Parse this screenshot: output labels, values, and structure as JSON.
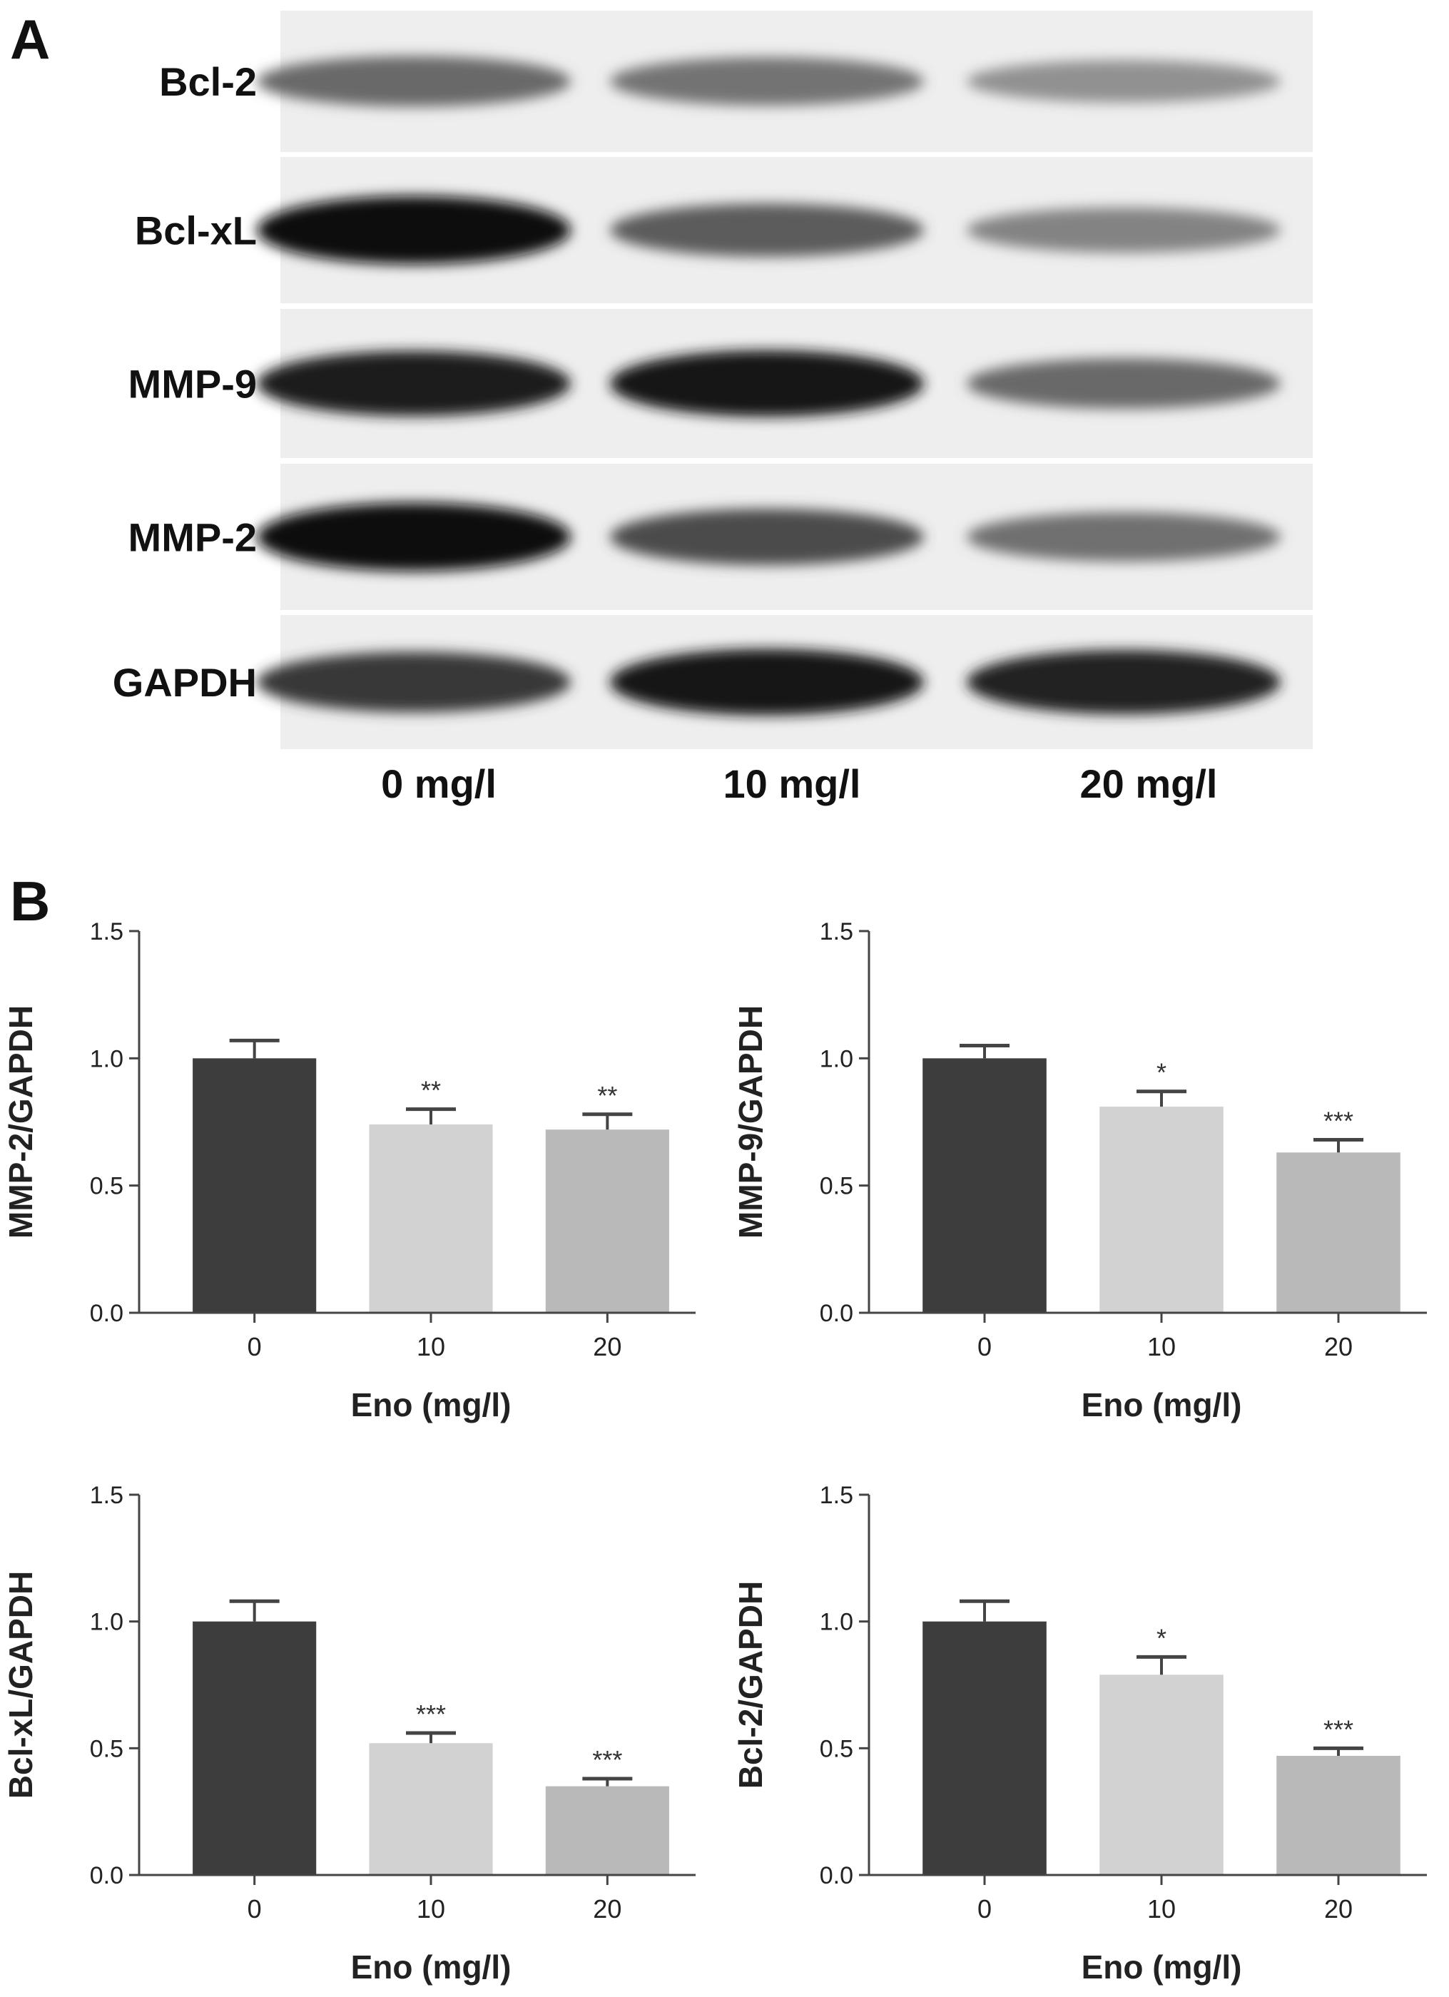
{
  "panel_a": {
    "label": "A",
    "proteins": [
      "Bcl-2",
      "Bcl-xL",
      "MMP-9",
      "MMP-2",
      "GAPDH"
    ],
    "lanes": [
      "0 mg/l",
      "10 mg/l",
      "20 mg/l"
    ],
    "relative_band_intensity": [
      [
        0.55,
        0.5,
        0.35
      ],
      [
        1.0,
        0.62,
        0.42
      ],
      [
        0.92,
        0.95,
        0.55
      ],
      [
        1.0,
        0.7,
        0.52
      ],
      [
        0.8,
        0.95,
        0.9
      ]
    ]
  },
  "panel_b": {
    "label": "B"
  },
  "colors": {
    "bar_0": "#3d3d3d",
    "bar_10": "#d2d2d2",
    "bar_20": "#b9b9b9",
    "axis": "#444444"
  },
  "chart_data": [
    {
      "type": "bar",
      "categories": [
        "0",
        "10",
        "20"
      ],
      "values": [
        1.0,
        0.74,
        0.72
      ],
      "errors": [
        0.07,
        0.06,
        0.06
      ],
      "significance": [
        "",
        "**",
        "**"
      ],
      "xlabel": "Eno (mg/l)",
      "ylabel": "MMP-2/GAPDH",
      "ylim": [
        0,
        1.5
      ],
      "yticks": [
        "0.0",
        "0.5",
        "1.0",
        "1.5"
      ]
    },
    {
      "type": "bar",
      "categories": [
        "0",
        "10",
        "20"
      ],
      "values": [
        1.0,
        0.81,
        0.63
      ],
      "errors": [
        0.05,
        0.06,
        0.05
      ],
      "significance": [
        "",
        "*",
        "***"
      ],
      "xlabel": "Eno (mg/l)",
      "ylabel": "MMP-9/GAPDH",
      "ylim": [
        0,
        1.5
      ],
      "yticks": [
        "0.0",
        "0.5",
        "1.0",
        "1.5"
      ]
    },
    {
      "type": "bar",
      "categories": [
        "0",
        "10",
        "20"
      ],
      "values": [
        1.0,
        0.52,
        0.35
      ],
      "errors": [
        0.08,
        0.04,
        0.03
      ],
      "significance": [
        "",
        "***",
        "***"
      ],
      "xlabel": "Eno (mg/l)",
      "ylabel": "Bcl-xL/GAPDH",
      "ylim": [
        0,
        1.5
      ],
      "yticks": [
        "0.0",
        "0.5",
        "1.0",
        "1.5"
      ]
    },
    {
      "type": "bar",
      "categories": [
        "0",
        "10",
        "20"
      ],
      "values": [
        1.0,
        0.79,
        0.47
      ],
      "errors": [
        0.08,
        0.07,
        0.03
      ],
      "significance": [
        "",
        "*",
        "***"
      ],
      "xlabel": "Eno (mg/l)",
      "ylabel": "Bcl-2/GAPDH",
      "ylim": [
        0,
        1.5
      ],
      "yticks": [
        "0.0",
        "0.5",
        "1.0",
        "1.5"
      ]
    }
  ]
}
